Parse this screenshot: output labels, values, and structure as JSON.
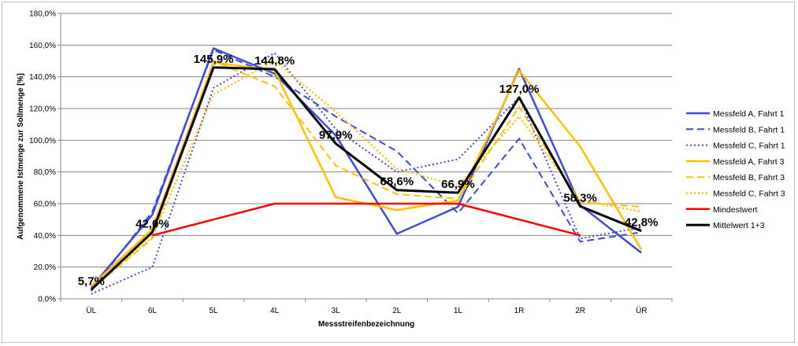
{
  "chart_data": {
    "type": "line",
    "title": "",
    "xlabel": "Messstreifenbezeichnung",
    "ylabel": "Aufgenommene Istmenge zur Sollmenge [%]",
    "ylim": [
      0,
      180
    ],
    "yticks": [
      "0,0%",
      "20,0%",
      "40,0%",
      "60,0%",
      "80,0%",
      "100,0%",
      "120,0%",
      "140,0%",
      "160,0%",
      "180,0%"
    ],
    "categories": [
      "ÜL",
      "6L",
      "5L",
      "4L",
      "3L",
      "2L",
      "1L",
      "1R",
      "2R",
      "ÜR"
    ],
    "grid": true,
    "legend_position": "right",
    "series": [
      {
        "name": "Messfeld A, Fahrt 1",
        "color": "#3f48e0",
        "style": "solid",
        "width": 2.5,
        "values": [
          7,
          53,
          158,
          142,
          103,
          41,
          58,
          145,
          59,
          29
        ]
      },
      {
        "name": "Messfeld B, Fahrt 1",
        "color": "#3f48e0",
        "style": "dashed",
        "width": 2,
        "values": [
          5,
          55,
          157,
          140,
          115,
          93,
          54,
          101,
          36,
          42
        ]
      },
      {
        "name": "Messfeld C, Fahrt 1",
        "color": "#3f48e0",
        "style": "dotted",
        "width": 2,
        "values": [
          3,
          20,
          133,
          155,
          107,
          80,
          88,
          127,
          38,
          45
        ]
      },
      {
        "name": "Messfeld A, Fahrt 3",
        "color": "#ffc000",
        "style": "solid",
        "width": 2.5,
        "values": [
          8,
          44,
          149,
          144,
          64,
          56,
          62,
          144,
          96,
          31
        ]
      },
      {
        "name": "Messfeld B, Fahrt 3",
        "color": "#ffc000",
        "style": "dashed",
        "width": 2,
        "values": [
          6,
          38,
          150,
          134,
          84,
          66,
          63,
          121,
          61,
          58
        ]
      },
      {
        "name": "Messfeld C, Fahrt 3",
        "color": "#ffc000",
        "style": "dotted",
        "width": 2.5,
        "values": [
          6,
          39,
          129,
          150,
          118,
          82,
          71,
          115,
          62,
          55
        ]
      },
      {
        "name": "Mindestwert",
        "color": "#ff0000",
        "style": "solid",
        "width": 2.5,
        "values": [
          null,
          40,
          50,
          60,
          60,
          60,
          60,
          50,
          40,
          null
        ]
      },
      {
        "name": "Mittelwert 1+3",
        "color": "#000000",
        "style": "solid",
        "width": 3,
        "values": [
          5.7,
          42.0,
          145.9,
          144.8,
          97.9,
          68.6,
          66.9,
          127.0,
          58.3,
          42.8
        ]
      }
    ],
    "data_labels": [
      "5,7%",
      "42,0%",
      "145,9%",
      "144,8%",
      "97,9%",
      "68,6%",
      "66,9%",
      "127,0%",
      "58,3%",
      "42,8%"
    ]
  }
}
